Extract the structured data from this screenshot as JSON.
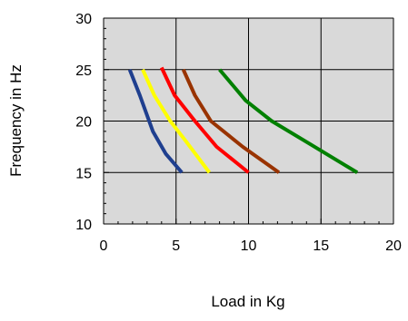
{
  "chart_data": {
    "type": "line",
    "title": "",
    "xlabel": "Load in Kg",
    "ylabel": "Frequency in Hz",
    "xlim": [
      0,
      20
    ],
    "ylim": [
      10,
      30
    ],
    "x_ticks": [
      "0",
      "5",
      "10",
      "15",
      "20"
    ],
    "y_ticks": [
      "10",
      "15",
      "20",
      "25",
      "30"
    ],
    "grid": true,
    "legend": "none",
    "plot_background": "#D9D9D9",
    "series": [
      {
        "color": "#1F3F8F",
        "points": [
          [
            1.8,
            25
          ],
          [
            2.5,
            22.5
          ],
          [
            3.4,
            19
          ],
          [
            4.3,
            16.8
          ],
          [
            5.4,
            15
          ]
        ]
      },
      {
        "color": "#FFFF00",
        "points": [
          [
            2.7,
            25
          ],
          [
            3.5,
            22.5
          ],
          [
            4.6,
            20
          ],
          [
            5.7,
            18
          ],
          [
            7.3,
            15
          ]
        ]
      },
      {
        "color": "#FF0000",
        "points": [
          [
            4.0,
            25.2
          ],
          [
            4.9,
            22.5
          ],
          [
            6.3,
            20
          ],
          [
            7.8,
            17.5
          ],
          [
            10.0,
            15
          ]
        ]
      },
      {
        "color": "#993300",
        "points": [
          [
            5.5,
            25
          ],
          [
            6.3,
            22.5
          ],
          [
            7.4,
            20
          ],
          [
            9.6,
            17.5
          ],
          [
            12.1,
            15
          ]
        ]
      },
      {
        "color": "#008000",
        "points": [
          [
            8.0,
            25
          ],
          [
            9.8,
            22
          ],
          [
            11.6,
            20
          ],
          [
            14.2,
            17.8
          ],
          [
            17.5,
            15
          ]
        ]
      }
    ]
  }
}
